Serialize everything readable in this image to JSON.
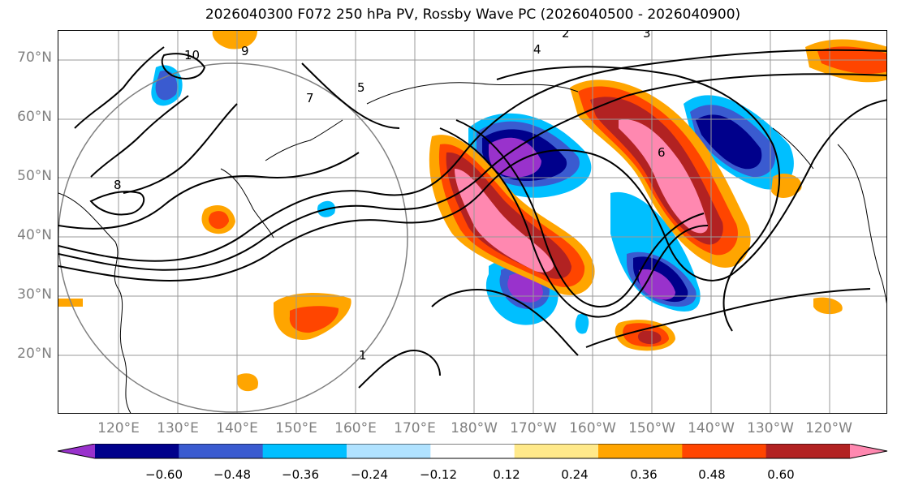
{
  "title": "2026040300 F072 250 hPa PV, Rossby Wave PC (2026040500 - 2026040900)",
  "lat_labels": [
    "70°N",
    "60°N",
    "50°N",
    "40°N",
    "30°N",
    "20°N"
  ],
  "lon_labels": [
    "120°E",
    "130°E",
    "140°E",
    "150°E",
    "160°E",
    "170°E",
    "180°W",
    "170°W",
    "160°W",
    "150°W",
    "140°W",
    "130°W",
    "120°W"
  ],
  "colorbar": {
    "ticks": [
      "−0.60",
      "−0.48",
      "−0.36",
      "−0.24",
      "−0.12",
      "0.12",
      "0.24",
      "0.36",
      "0.48",
      "0.60"
    ],
    "colors": [
      "#9932cc",
      "#00008b",
      "#3a5bd0",
      "#00bfff",
      "#b0e2ff",
      "#ffffff",
      "#ffe98a",
      "#ffa500",
      "#ff4500",
      "#b22222",
      "#ff88b0"
    ]
  },
  "contour_labels": [
    "2",
    "3",
    "4",
    "5",
    "6",
    "7",
    "8",
    "9",
    "10",
    "1"
  ]
}
